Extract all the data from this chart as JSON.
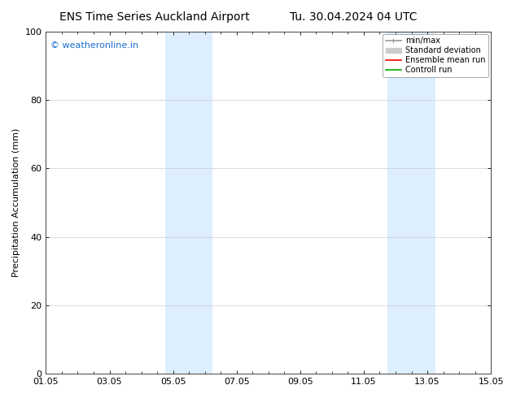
{
  "title1": "ENS Time Series Auckland Airport",
  "title2": "Tu. 30.04.2024 04 UTC",
  "ylabel": "Precipitation Accumulation (mm)",
  "ylim": [
    0,
    100
  ],
  "xtick_labels": [
    "01.05",
    "03.05",
    "05.05",
    "07.05",
    "09.05",
    "11.05",
    "13.05",
    "15.05"
  ],
  "xtick_positions": [
    0,
    2,
    4,
    6,
    8,
    10,
    12,
    14
  ],
  "ytick_positions": [
    0,
    20,
    40,
    60,
    80,
    100
  ],
  "shaded_bands": [
    {
      "x_start": 3.75,
      "x_end": 5.25
    },
    {
      "x_start": 10.75,
      "x_end": 12.25
    }
  ],
  "shade_color": "#ddeeff",
  "watermark": "© weatheronline.in",
  "watermark_color": "#1a6dcc",
  "legend_entries": [
    {
      "label": "min/max",
      "color": "#999999",
      "lw": 1.2
    },
    {
      "label": "Standard deviation",
      "color": "#cccccc",
      "lw": 5
    },
    {
      "label": "Ensemble mean run",
      "color": "#ff0000",
      "lw": 1.2
    },
    {
      "label": "Controll run",
      "color": "#00aa00",
      "lw": 1.2
    }
  ],
  "bg_color": "#ffffff",
  "plot_bg_color": "#ffffff",
  "grid_color": "#cccccc",
  "title_fontsize": 10,
  "ylabel_fontsize": 8,
  "tick_fontsize": 8,
  "watermark_fontsize": 8,
  "legend_fontsize": 7
}
